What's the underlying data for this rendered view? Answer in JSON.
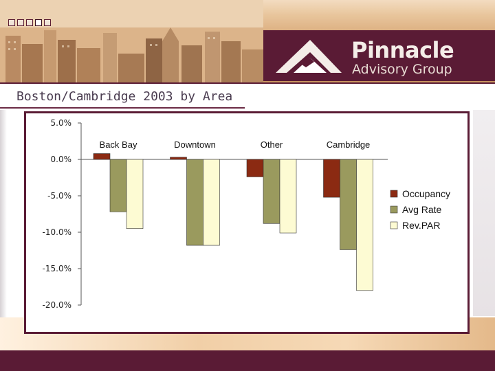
{
  "header": {
    "brand_name": "Pinnacle",
    "brand_sub": "Advisory Group",
    "slide_dots": [
      false,
      false,
      false,
      true,
      false
    ]
  },
  "title": "Boston/Cambridge 2003 by Area",
  "colors": {
    "occupancy": "#8b2a12",
    "avg_rate": "#9a9a5e",
    "revpar": "#fdfbd3",
    "brand": "#5a1b35"
  },
  "chart_data": {
    "type": "bar",
    "categories": [
      "Back Bay",
      "Downtown",
      "Other",
      "Cambridge"
    ],
    "series": [
      {
        "name": "Occupancy",
        "values": [
          0.8,
          0.3,
          -2.4,
          -5.2
        ]
      },
      {
        "name": "Avg Rate",
        "values": [
          -7.2,
          -11.8,
          -8.8,
          -12.4
        ]
      },
      {
        "name": "Rev.PAR",
        "values": [
          -9.5,
          -11.8,
          -10.1,
          -18.0
        ]
      }
    ],
    "yticks": [
      "5.0%",
      "0.0%",
      "-5.0%",
      "-10.0%",
      "-15.0%",
      "-20.0%"
    ],
    "ytick_values": [
      5,
      0,
      -5,
      -10,
      -15,
      -20
    ],
    "ylim": [
      -20,
      5
    ],
    "legend_position": "right",
    "grid": false
  }
}
